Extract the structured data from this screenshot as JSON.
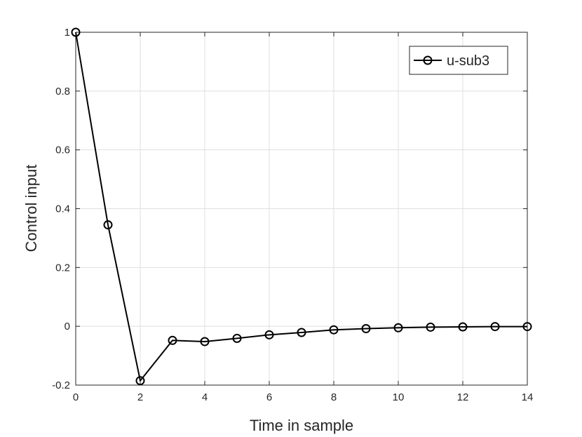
{
  "chart_data": {
    "type": "line",
    "title": "",
    "xlabel": "Time in sample",
    "ylabel": "Control input",
    "xlim": [
      0,
      14
    ],
    "ylim": [
      -0.2,
      1
    ],
    "xticks": [
      0,
      2,
      4,
      6,
      8,
      10,
      12,
      14
    ],
    "xtick_labels": [
      "0",
      "2",
      "4",
      "6",
      "8",
      "10",
      "12",
      "14"
    ],
    "yticks": [
      -0.2,
      0,
      0.2,
      0.4,
      0.6,
      0.8,
      1
    ],
    "ytick_labels": [
      "-0.2",
      "0",
      "0.2",
      "0.4",
      "0.6",
      "0.8",
      "1"
    ],
    "grid": true,
    "legend_position": "top-right",
    "series": [
      {
        "name": "u-sub3",
        "color": "#000000",
        "marker": "circle",
        "x": [
          0,
          1,
          2,
          3,
          4,
          5,
          6,
          7,
          8,
          9,
          10,
          11,
          12,
          13,
          14
        ],
        "y": [
          1.0,
          0.345,
          -0.185,
          -0.048,
          -0.052,
          -0.041,
          -0.029,
          -0.021,
          -0.012,
          -0.008,
          -0.005,
          -0.003,
          -0.002,
          -0.001,
          -0.001
        ]
      }
    ]
  }
}
